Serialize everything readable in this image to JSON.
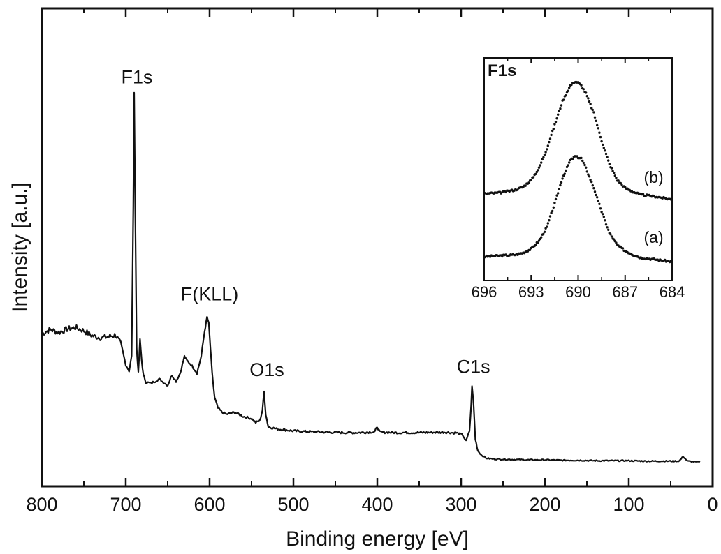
{
  "chart_data": [
    {
      "type": "line",
      "title": "",
      "xlabel": "Binding energy [eV]",
      "ylabel": "Intensity [a.u.]",
      "xlim": [
        800,
        0
      ],
      "ylim": [
        0,
        100
      ],
      "x_reversed": true,
      "y_ticks_shown": false,
      "grid": false,
      "xticks": [
        800,
        700,
        600,
        500,
        400,
        300,
        200,
        100,
        0
      ],
      "xtick_labels": [
        "800",
        "700",
        "600",
        "500",
        "400",
        "300",
        "200",
        "100",
        "0"
      ],
      "series": [
        {
          "values_note_none": "",
          "x": [
            800,
            790,
            780,
            770,
            760,
            750,
            740,
            730,
            720,
            712,
            706,
            700,
            696,
            693,
            691,
            690,
            689,
            687,
            685,
            683,
            681,
            679,
            676,
            670,
            660,
            650,
            645,
            640,
            635,
            630,
            627,
            622,
            615,
            610,
            606,
            603,
            601,
            599,
            597,
            594,
            590,
            585,
            580,
            570,
            560,
            550,
            545,
            540,
            537,
            535,
            533,
            530,
            520,
            500,
            480,
            460,
            440,
            420,
            403,
            400,
            397,
            380,
            360,
            340,
            320,
            305,
            298,
            294,
            290,
            288,
            287,
            285,
            283,
            280,
            276,
            270,
            260,
            240,
            220,
            200,
            180,
            160,
            140,
            120,
            100,
            80,
            60,
            40,
            35,
            30,
            20,
            15
          ],
          "y": [
            31.5,
            32.5,
            31.8,
            32.6,
            33.0,
            32.2,
            31.0,
            30.5,
            30.8,
            31.2,
            29.0,
            24.0,
            22.5,
            26.0,
            62.0,
            90.0,
            68.0,
            28.0,
            22.0,
            30.0,
            25.0,
            21.5,
            19.8,
            19.5,
            20.5,
            19.0,
            21.5,
            20.0,
            22.0,
            26.0,
            25.0,
            24.0,
            22.0,
            26.0,
            32.0,
            35.5,
            34.0,
            28.0,
            22.0,
            16.0,
            13.5,
            12.5,
            12.0,
            12.5,
            11.5,
            11.0,
            10.0,
            10.5,
            13.0,
            17.5,
            12.0,
            9.0,
            8.5,
            8.0,
            7.8,
            7.7,
            7.6,
            7.6,
            7.8,
            9.0,
            7.7,
            7.6,
            7.6,
            7.6,
            7.7,
            7.5,
            7.0,
            5.5,
            8.0,
            14.0,
            19.0,
            14.0,
            6.0,
            3.2,
            2.2,
            1.4,
            1.2,
            1.1,
            1.0,
            1.0,
            0.9,
            0.9,
            0.8,
            0.8,
            0.8,
            0.7,
            0.7,
            0.7,
            1.8,
            0.7,
            0.5,
            0.5
          ]
        }
      ],
      "annotations": [
        {
          "text": "F1s",
          "x": 690,
          "y": 90.0
        },
        {
          "text": "F(KLL)",
          "x": 600,
          "y": 35.5
        },
        {
          "text": "O1s",
          "x": 535,
          "y": 17.5
        },
        {
          "text": "C1s",
          "x": 287,
          "y": 19.0
        }
      ]
    },
    {
      "type": "scatter",
      "title": "F1s",
      "xlabel": "",
      "ylabel": "",
      "xlim": [
        696,
        684
      ],
      "ylim": [
        0,
        100
      ],
      "x_reversed": true,
      "y_ticks_shown": false,
      "grid": false,
      "xticks": [
        696,
        693,
        690,
        687,
        684
      ],
      "xtick_labels": [
        "696",
        "693",
        "690",
        "687",
        "684"
      ],
      "series": [
        {
          "name": "(a)",
          "x": [
            696.0,
            695.0,
            694.0,
            693.5,
            693.0,
            692.5,
            692.0,
            691.5,
            691.0,
            690.5,
            690.2,
            690.0,
            689.8,
            689.5,
            689.0,
            688.5,
            688.0,
            687.5,
            687.0,
            686.5,
            686.0,
            685.0,
            684.0
          ],
          "y": [
            5.0,
            5.5,
            6.0,
            7.0,
            9.0,
            13.0,
            20.0,
            32.0,
            45.0,
            54.0,
            56.0,
            55.5,
            55.0,
            50.0,
            40.0,
            28.0,
            17.0,
            11.0,
            8.0,
            6.0,
            4.5,
            3.5,
            2.5
          ]
        },
        {
          "name": "(b)",
          "x": [
            696.0,
            695.0,
            694.0,
            693.5,
            693.0,
            692.5,
            692.0,
            691.5,
            691.0,
            690.5,
            690.2,
            690.0,
            689.8,
            689.5,
            689.0,
            688.5,
            688.0,
            687.5,
            687.0,
            686.5,
            686.0,
            685.0,
            684.0
          ],
          "y": [
            37.0,
            37.5,
            39.0,
            40.5,
            44.0,
            50.0,
            60.0,
            72.0,
            84.0,
            92.0,
            94.0,
            93.5,
            92.0,
            88.0,
            78.0,
            64.0,
            52.0,
            44.0,
            40.0,
            38.0,
            36.5,
            35.5,
            34.0
          ]
        }
      ],
      "labels": [
        {
          "text": "(b)",
          "series": 1
        },
        {
          "text": "(a)",
          "series": 0
        }
      ]
    }
  ]
}
